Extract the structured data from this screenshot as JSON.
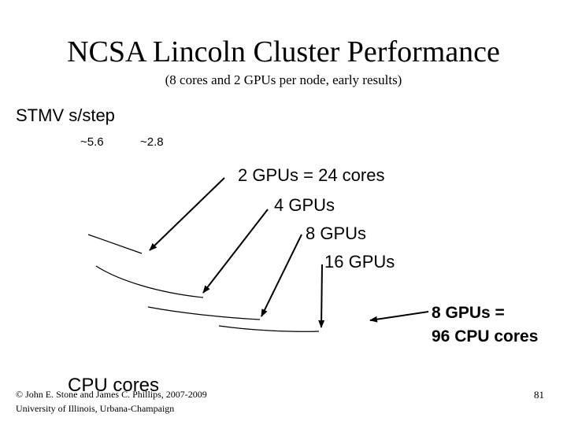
{
  "slide": {
    "title": "NCSA Lincoln Cluster Performance",
    "subtitle": "(8 cores and 2 GPUs per node, early results)",
    "y_axis_label": "STMV s/step",
    "y_ticks": [
      "~5.6",
      "~2.8"
    ],
    "x_axis_label": "CPU cores",
    "callouts": [
      "2 GPUs = 24 cores",
      "4 GPUs",
      "8 GPUs",
      "16 GPUs"
    ],
    "comparison": [
      "8 GPUs =",
      "96 CPU cores"
    ],
    "footer": {
      "copyright": "© John E. Stone and James C. Phillips, 2007-2009",
      "university": "University of Illinois, Urbana-Champaign",
      "page_number": "81"
    }
  },
  "colors": {
    "ink": "#000000",
    "background": "#ffffff"
  }
}
